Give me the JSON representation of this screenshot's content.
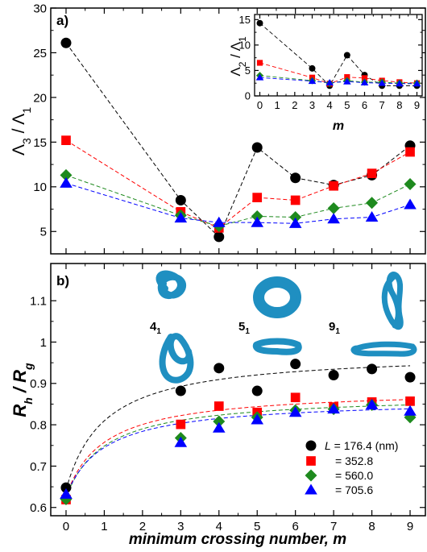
{
  "chart_data": [
    {
      "type": "scatter",
      "panel_label": "a)",
      "ylabel": "Λ3 / Λ1",
      "xlim": [
        -0.4,
        9.4
      ],
      "ylim": [
        2.5,
        30
      ],
      "xticks": [
        0,
        1,
        2,
        3,
        4,
        5,
        6,
        7,
        8,
        9
      ],
      "yticks": [
        5,
        10,
        15,
        20,
        25,
        30
      ],
      "grid": false,
      "series": [
        {
          "name": "L = 176.4 (nm)",
          "color": "#000000",
          "marker": "circle",
          "x": [
            0,
            3,
            4,
            5,
            6,
            7,
            8,
            9
          ],
          "y": [
            26.1,
            8.5,
            4.4,
            14.4,
            11.0,
            10.2,
            11.3,
            14.6
          ]
        },
        {
          "name": "= 352.8",
          "color": "#ff0000",
          "marker": "square",
          "x": [
            0,
            3,
            4,
            5,
            6,
            7,
            8,
            9
          ],
          "y": [
            15.2,
            7.2,
            5.4,
            8.8,
            8.5,
            10.1,
            11.5,
            13.9
          ]
        },
        {
          "name": "= 560.0",
          "color": "#1e8a1e",
          "marker": "diamond",
          "x": [
            0,
            3,
            4,
            5,
            6,
            7,
            8,
            9
          ],
          "y": [
            11.3,
            6.8,
            5.6,
            6.7,
            6.6,
            7.6,
            8.2,
            10.3
          ]
        },
        {
          "name": "= 705.6",
          "color": "#0000ff",
          "marker": "triangle",
          "x": [
            0,
            3,
            4,
            5,
            6,
            7,
            8,
            9
          ],
          "y": [
            10.4,
            6.5,
            6.0,
            6.0,
            5.9,
            6.4,
            6.6,
            8.0
          ]
        }
      ]
    },
    {
      "type": "scatter",
      "inset": true,
      "ylabel": "Λ2 / Λ1",
      "xlabel": "m",
      "xlim": [
        -0.3,
        9.3
      ],
      "ylim": [
        0,
        16
      ],
      "xticks": [
        0,
        1,
        2,
        3,
        4,
        5,
        6,
        7,
        8,
        9
      ],
      "yticks": [
        0,
        5,
        10,
        15
      ],
      "series": [
        {
          "color": "#000000",
          "marker": "circle",
          "x": [
            0,
            3,
            4,
            5,
            6,
            7,
            8,
            9
          ],
          "y": [
            14.3,
            5.4,
            2.0,
            8.0,
            4.1,
            2.0,
            2.0,
            2.0
          ]
        },
        {
          "color": "#ff0000",
          "marker": "square",
          "x": [
            0,
            3,
            4,
            5,
            6,
            7,
            8,
            9
          ],
          "y": [
            6.5,
            3.6,
            2.4,
            3.7,
            3.5,
            3.0,
            2.7,
            2.5
          ]
        },
        {
          "color": "#1e8a1e",
          "marker": "diamond",
          "x": [
            0,
            3,
            4,
            5,
            6,
            7,
            8,
            9
          ],
          "y": [
            4.0,
            3.0,
            2.5,
            3.0,
            2.7,
            2.7,
            2.5,
            2.5
          ]
        },
        {
          "color": "#0000ff",
          "marker": "triangle",
          "x": [
            0,
            3,
            4,
            5,
            6,
            7,
            8,
            9
          ],
          "y": [
            3.6,
            2.9,
            2.6,
            2.8,
            2.6,
            2.5,
            2.4,
            2.4
          ]
        }
      ]
    },
    {
      "type": "scatter",
      "panel_label": "b)",
      "ylabel": "Rh / Rg",
      "xlabel": "minimum crossing number, m",
      "xlim": [
        -0.4,
        9.4
      ],
      "ylim": [
        0.58,
        1.19
      ],
      "xticks": [
        0,
        1,
        2,
        3,
        4,
        5,
        6,
        7,
        8,
        9
      ],
      "yticks": [
        0.6,
        0.7,
        0.8,
        0.9,
        1.0,
        1.1
      ],
      "ytick_labels": [
        "0.6",
        "0.7",
        "0.8",
        "0.9",
        "1",
        "1.1"
      ],
      "grid": false,
      "legend_position": "bottom-right",
      "legend": [
        {
          "label": "L = 176.4 (nm)"
        },
        {
          "label": "= 352.8"
        },
        {
          "label": "= 560.0"
        },
        {
          "label": "= 705.6"
        }
      ],
      "knot_labels": [
        {
          "text": "4",
          "sub": "1"
        },
        {
          "text": "5",
          "sub": "1"
        },
        {
          "text": "9",
          "sub": "1"
        }
      ],
      "series": [
        {
          "name": "L = 176.4 (nm)",
          "color": "#000000",
          "marker": "circle",
          "x": [
            0,
            3,
            4,
            5,
            6,
            7,
            8,
            9
          ],
          "y": [
            0.648,
            0.882,
            0.937,
            0.882,
            0.947,
            0.92,
            0.935,
            0.915
          ],
          "fit": {
            "a": 0.643,
            "b": 0.333
          }
        },
        {
          "name": "= 352.8",
          "color": "#ff0000",
          "marker": "square",
          "x": [
            0,
            3,
            4,
            5,
            6,
            7,
            8,
            9
          ],
          "y": [
            0.619,
            0.801,
            0.845,
            0.83,
            0.866,
            0.843,
            0.855,
            0.857
          ],
          "fit": {
            "a": 0.628,
            "b": 0.259
          }
        },
        {
          "name": "= 560.0",
          "color": "#1e8a1e",
          "marker": "diamond",
          "x": [
            0,
            3,
            4,
            5,
            6,
            7,
            8,
            9
          ],
          "y": [
            0.62,
            0.768,
            0.808,
            0.818,
            0.835,
            0.838,
            0.848,
            0.818
          ],
          "fit": {
            "a": 0.624,
            "b": 0.249
          }
        },
        {
          "name": "= 705.6",
          "color": "#0000ff",
          "marker": "triangle",
          "x": [
            0,
            3,
            4,
            5,
            6,
            7,
            8,
            9
          ],
          "y": [
            0.632,
            0.757,
            0.792,
            0.812,
            0.83,
            0.838,
            0.848,
            0.833
          ],
          "fit": {
            "a": 0.628,
            "b": 0.234
          }
        }
      ]
    }
  ]
}
